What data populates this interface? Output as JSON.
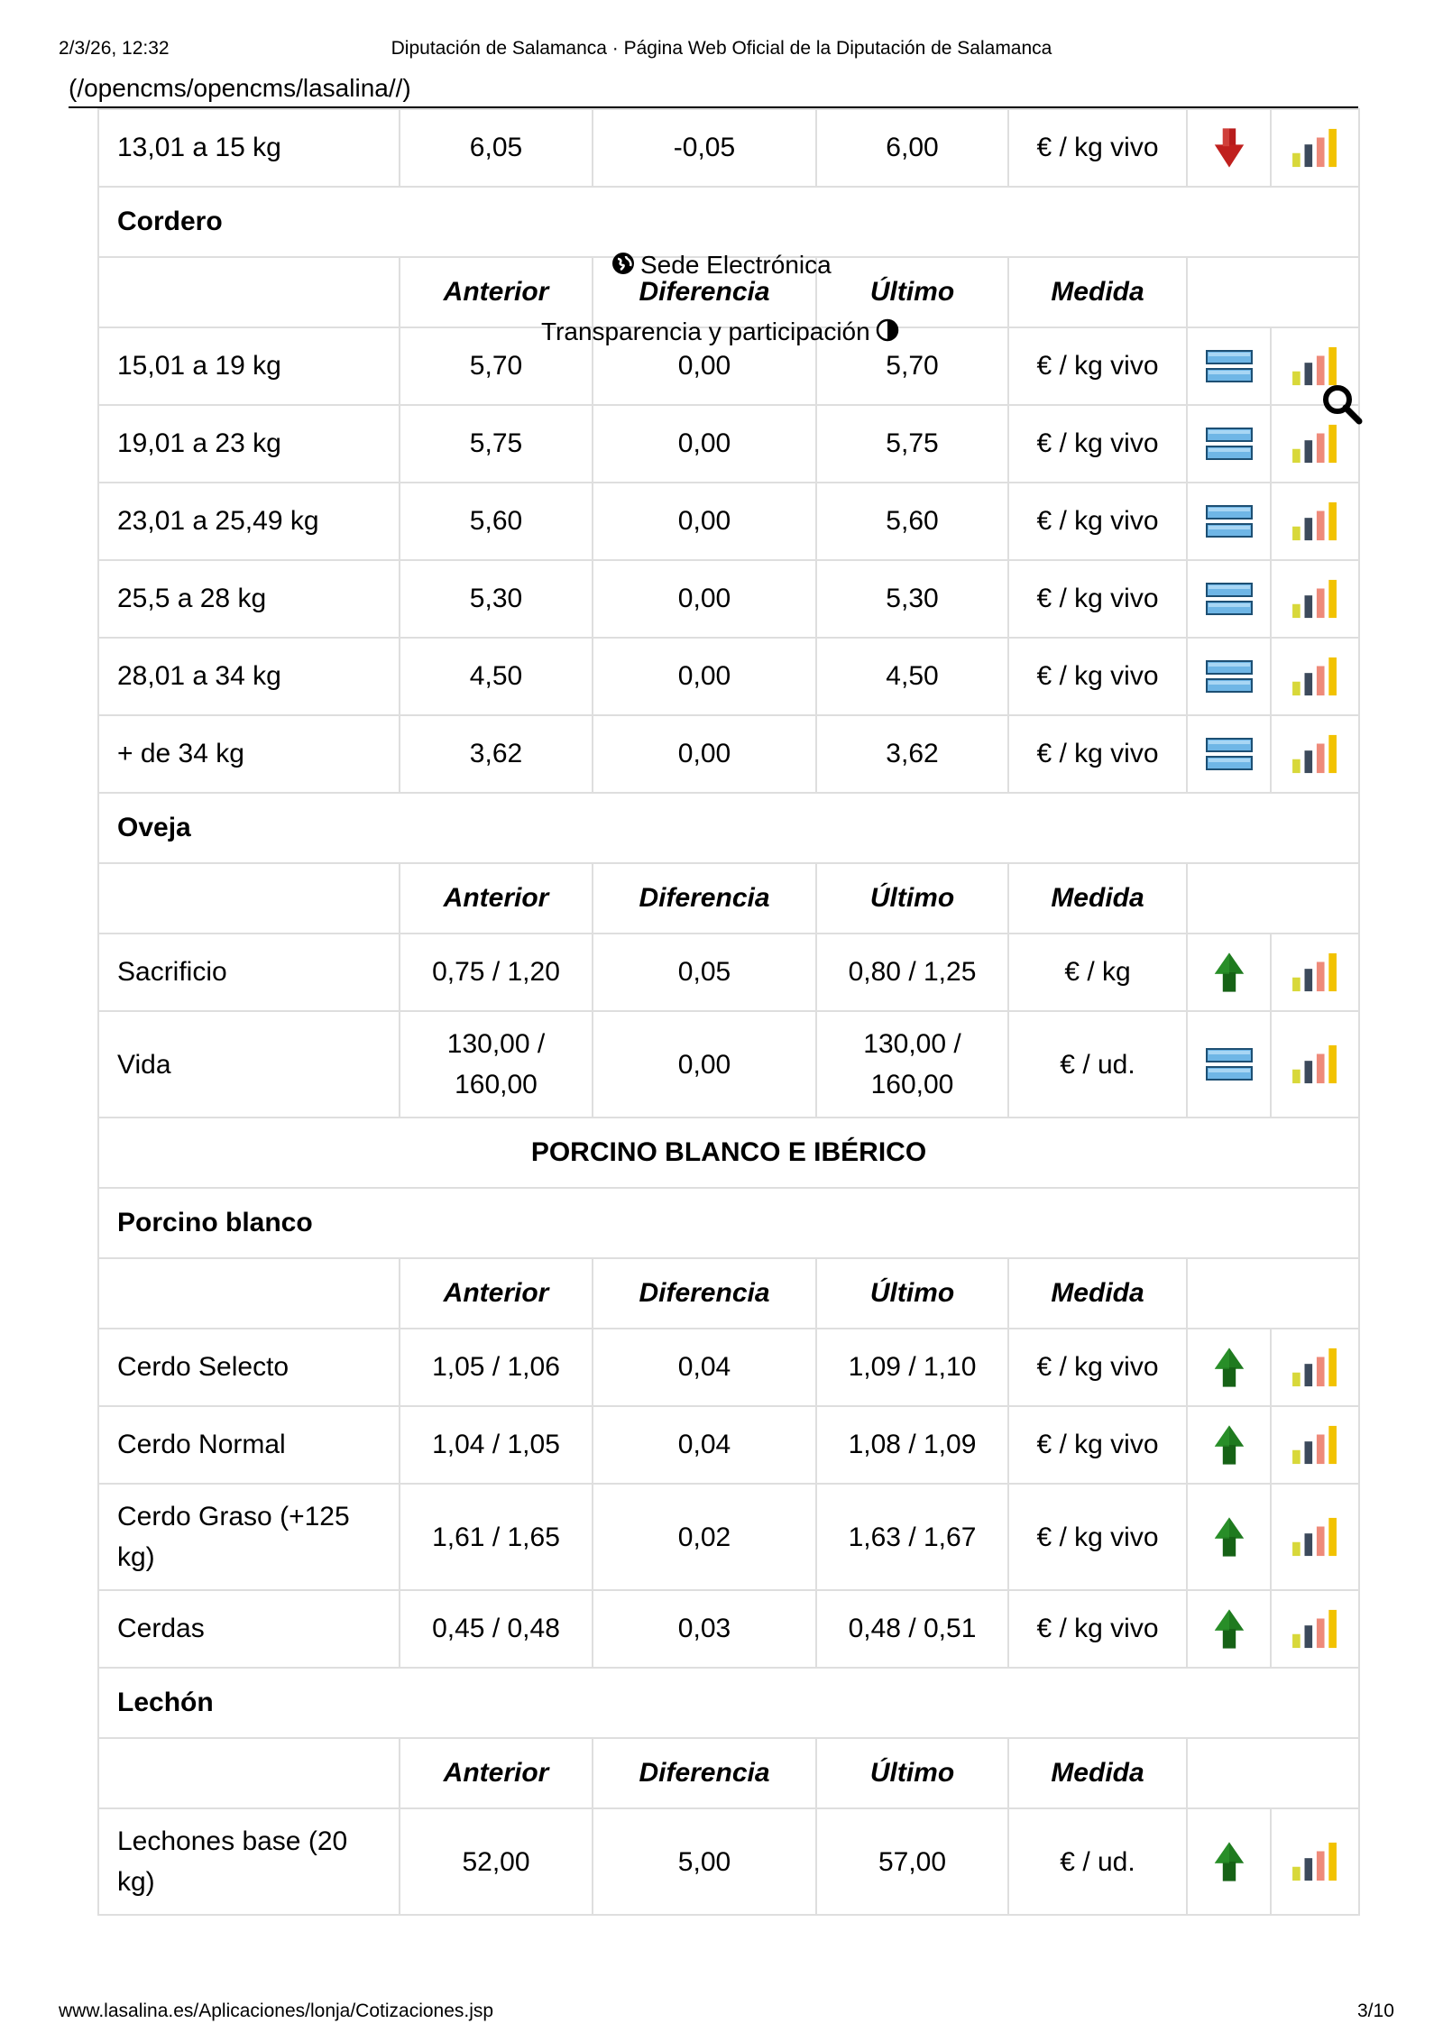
{
  "print_header": {
    "datetime": "2/3/26, 12:32",
    "title": "Diputación de Salamanca · Página Web Oficial de la Diputación de Salamanca",
    "url_fragment": "(/opencms/opencms/lasalina//)"
  },
  "overlays": {
    "sede": "Sede Electrónica",
    "transparencia": "Transparencia y participación",
    "icons": [
      "globe-icon",
      "contrast-icon",
      "search-icon"
    ]
  },
  "column_headers": [
    "Anterior",
    "Diferencia",
    "Último",
    "Medida"
  ],
  "trend_icons": {
    "down": "red-down-arrow",
    "equal": "blue-equal-bars",
    "up": "green-up-arrow",
    "chart": "bar-chart-icon"
  },
  "colors": {
    "up": "#1f7a1f",
    "down": "#c0201e",
    "equal": "#3a9ad9",
    "bars": [
      "#d8d83a",
      "#3c4a5c",
      "#ee8a7a",
      "#f2c200"
    ]
  },
  "table": {
    "top_row": {
      "name": "13,01 a 15 kg",
      "anterior": "6,05",
      "diferencia": "-0,05",
      "ultimo": "6,00",
      "medida": "€ / kg vivo",
      "trend": "down"
    },
    "cordero": {
      "title": "Cordero",
      "rows": [
        {
          "name": "15,01 a 19 kg",
          "anterior": "5,70",
          "diferencia": "0,00",
          "ultimo": "5,70",
          "medida": "€ / kg vivo",
          "trend": "equal"
        },
        {
          "name": "19,01 a 23 kg",
          "anterior": "5,75",
          "diferencia": "0,00",
          "ultimo": "5,75",
          "medida": "€ / kg vivo",
          "trend": "equal"
        },
        {
          "name": "23,01 a 25,49 kg",
          "anterior": "5,60",
          "diferencia": "0,00",
          "ultimo": "5,60",
          "medida": "€ / kg vivo",
          "trend": "equal"
        },
        {
          "name": "25,5 a 28 kg",
          "anterior": "5,30",
          "diferencia": "0,00",
          "ultimo": "5,30",
          "medida": "€ / kg vivo",
          "trend": "equal"
        },
        {
          "name": "28,01 a 34 kg",
          "anterior": "4,50",
          "diferencia": "0,00",
          "ultimo": "4,50",
          "medida": "€ / kg vivo",
          "trend": "equal"
        },
        {
          "name": "+ de 34 kg",
          "anterior": "3,62",
          "diferencia": "0,00",
          "ultimo": "3,62",
          "medida": "€ / kg vivo",
          "trend": "equal"
        }
      ]
    },
    "oveja": {
      "title": "Oveja",
      "rows": [
        {
          "name": "Sacrificio",
          "anterior": "0,75 / 1,20",
          "diferencia": "0,05",
          "ultimo": "0,80 / 1,25",
          "medida": "€ / kg",
          "trend": "up"
        },
        {
          "name": "Vida",
          "anterior": "130,00 / 160,00",
          "diferencia": "0,00",
          "ultimo": "130,00 / 160,00",
          "medida": "€ / ud.",
          "trend": "equal"
        }
      ]
    },
    "porcino_section": "PORCINO BLANCO E IBÉRICO",
    "porcino_blanco": {
      "title": "Porcino blanco",
      "rows": [
        {
          "name": "Cerdo Selecto",
          "anterior": "1,05 / 1,06",
          "diferencia": "0,04",
          "ultimo": "1,09 / 1,10",
          "medida": "€ / kg vivo",
          "trend": "up"
        },
        {
          "name": "Cerdo Normal",
          "anterior": "1,04 / 1,05",
          "diferencia": "0,04",
          "ultimo": "1,08 / 1,09",
          "medida": "€ / kg vivo",
          "trend": "up"
        },
        {
          "name": "Cerdo Graso (+125 kg)",
          "anterior": "1,61 / 1,65",
          "diferencia": "0,02",
          "ultimo": "1,63 / 1,67",
          "medida": "€ / kg vivo",
          "trend": "up"
        },
        {
          "name": "Cerdas",
          "anterior": "0,45 / 0,48",
          "diferencia": "0,03",
          "ultimo": "0,48 / 0,51",
          "medida": "€ / kg vivo",
          "trend": "up"
        }
      ]
    },
    "lechon": {
      "title": "Lechón",
      "rows": [
        {
          "name": "Lechones base (20 kg)",
          "anterior": "52,00",
          "diferencia": "5,00",
          "ultimo": "57,00",
          "medida": "€ / ud.",
          "trend": "up"
        }
      ]
    }
  },
  "print_footer": {
    "url": "www.lasalina.es/Aplicaciones/lonja/Cotizaciones.jsp",
    "page": "3/10"
  }
}
